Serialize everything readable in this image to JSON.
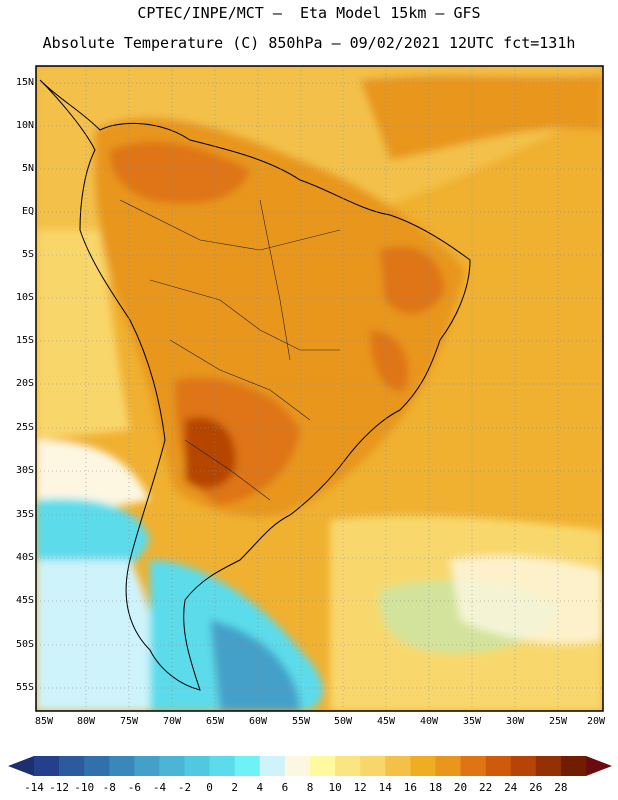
{
  "title": {
    "line1": "CPTEC/INPE/MCT —  Eta Model 15km — GFS",
    "line2": "Absolute Temperature (C) 850hPa — 09/02/2021 12UTC fct=131h"
  },
  "lat_labels": [
    "15N",
    "10N",
    "5N",
    "EQ",
    "5S",
    "10S",
    "15S",
    "20S",
    "25S",
    "30S",
    "35S",
    "40S",
    "45S",
    "50S",
    "55S"
  ],
  "lon_labels": [
    "85W",
    "80W",
    "75W",
    "70W",
    "65W",
    "60W",
    "55W",
    "50W",
    "45W",
    "40W",
    "35W",
    "30W",
    "25W",
    "20W"
  ],
  "colorbar": {
    "labels": [
      "-14",
      "-12",
      "-10",
      "-8",
      "-6",
      "-4",
      "-2",
      "0",
      "2",
      "4",
      "6",
      "8",
      "10",
      "12",
      "14",
      "16",
      "18",
      "20",
      "22",
      "24",
      "26",
      "28"
    ],
    "colors": [
      "#243f8c",
      "#2b5a9d",
      "#3170ad",
      "#3a87bb",
      "#44a0c9",
      "#4bb5d5",
      "#50c8e0",
      "#5cdceb",
      "#6ef2f7",
      "#cff3fb",
      "#fdf7e2",
      "#fffaa0",
      "#fbe580",
      "#f9d66b",
      "#f3c148",
      "#efad23",
      "#e8961c",
      "#df7512",
      "#cf5a0c",
      "#b64406",
      "#943004",
      "#701d02"
    ],
    "under_color": "#1e2f70",
    "over_color": "#6b0a0f"
  }
}
